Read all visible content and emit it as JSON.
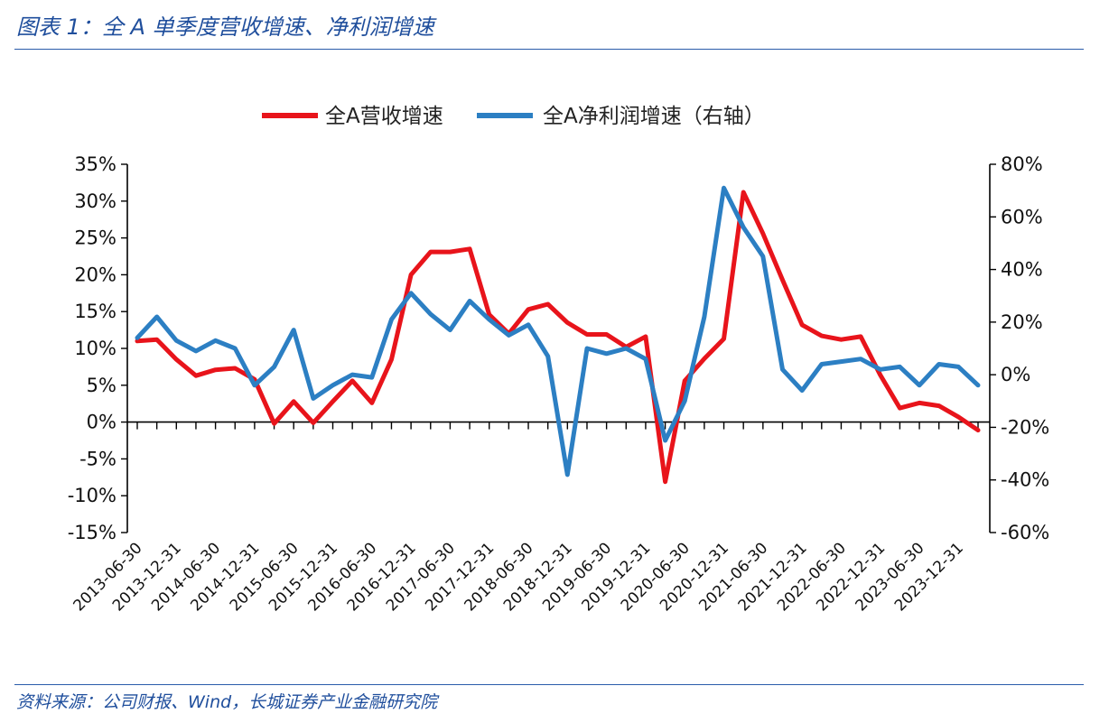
{
  "figure": {
    "title": "图表 1：全 A 单季度营收增速、净利润增速",
    "source": "资料来源：公司财报、Wind，长城证券产业金融研究院"
  },
  "colors": {
    "revenue": "#e8141b",
    "profit": "#2c7fc3",
    "rule": "#2a5caa",
    "caption": "#1f4e9c"
  },
  "chart_data": {
    "type": "line",
    "x_tick_labels": [
      "2013-06-30",
      "2013-12-31",
      "2014-06-30",
      "2014-12-31",
      "2015-06-30",
      "2015-12-31",
      "2016-06-30",
      "2016-12-31",
      "2017-06-30",
      "2017-12-31",
      "2018-06-30",
      "2018-12-31",
      "2019-06-30",
      "2019-12-31",
      "2020-06-30",
      "2020-12-31",
      "2021-06-30",
      "2021-12-31",
      "2022-06-30",
      "2022-12-31",
      "2023-06-30",
      "2023-12-31"
    ],
    "x": [
      "2013-06-30",
      "2013-09-30",
      "2013-12-31",
      "2014-03-31",
      "2014-06-30",
      "2014-09-30",
      "2014-12-31",
      "2015-03-31",
      "2015-06-30",
      "2015-09-30",
      "2015-12-31",
      "2016-03-31",
      "2016-06-30",
      "2016-09-30",
      "2016-12-31",
      "2017-03-31",
      "2017-06-30",
      "2017-09-30",
      "2017-12-31",
      "2018-03-31",
      "2018-06-30",
      "2018-09-30",
      "2018-12-31",
      "2019-03-31",
      "2019-06-30",
      "2019-09-30",
      "2019-12-31",
      "2020-03-31",
      "2020-06-30",
      "2020-09-30",
      "2020-12-31",
      "2021-03-31",
      "2021-06-30",
      "2021-09-30",
      "2021-12-31",
      "2022-03-31",
      "2022-06-30",
      "2022-09-30",
      "2022-12-31",
      "2023-03-31",
      "2023-06-30",
      "2023-09-30",
      "2023-12-31",
      "2024-03-31"
    ],
    "series": [
      {
        "name": "全A营收增速",
        "axis": "left",
        "values": [
          11.0,
          11.2,
          8.5,
          6.3,
          7.1,
          7.3,
          5.8,
          -0.2,
          2.8,
          -0.1,
          2.8,
          5.6,
          2.6,
          8.5,
          20.0,
          23.1,
          23.1,
          23.5,
          14.6,
          12.0,
          15.3,
          16.0,
          13.5,
          11.9,
          11.9,
          10.2,
          11.6,
          -8.1,
          5.6,
          8.6,
          11.3,
          31.2,
          25.6,
          19.3,
          13.2,
          11.7,
          11.2,
          11.6,
          6.4,
          1.9,
          2.6,
          2.2,
          0.7,
          -1.1
        ]
      },
      {
        "name": "全A净利润增速（右轴）",
        "axis": "right",
        "values": [
          14,
          22,
          13,
          9,
          13,
          10,
          -4,
          3,
          17,
          -9,
          -4,
          0,
          -1,
          21,
          31,
          23,
          17,
          28,
          21,
          15,
          19,
          7,
          -38,
          10,
          8,
          10,
          6,
          -25,
          -10,
          22,
          71,
          56,
          45,
          2,
          -6,
          4,
          5,
          6,
          2,
          3,
          -4,
          4,
          3,
          -4
        ]
      }
    ],
    "y_left": {
      "min": -15,
      "max": 35,
      "step": 5,
      "unit": "%"
    },
    "y_right": {
      "min": -60,
      "max": 80,
      "step": 20,
      "unit": "%"
    },
    "legend_position": "top-center",
    "grid": false
  }
}
